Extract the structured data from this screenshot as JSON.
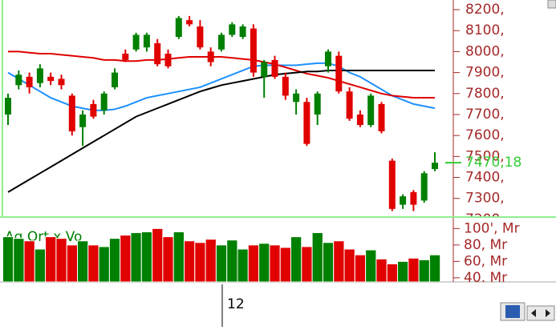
{
  "chart_data": [
    {
      "type": "candlestick",
      "up_color": "#008000",
      "down_color": "#e00000",
      "open": [
        7700,
        7840,
        7880,
        7850,
        7880,
        7870,
        7790,
        7640,
        7750,
        7720,
        7830,
        7990,
        8010,
        8020,
        8040,
        7990,
        8070,
        8150,
        8120,
        8000,
        8010,
        8080,
        8070,
        8110,
        7880,
        7960,
        7880,
        7760,
        7760,
        7700,
        7930,
        7980,
        7810,
        7700,
        7650,
        7750,
        7480,
        7270,
        7330,
        7290,
        7440
      ],
      "high": [
        7800,
        7910,
        7900,
        7940,
        7900,
        7890,
        7800,
        7720,
        7770,
        7810,
        7920,
        8010,
        8090,
        8090,
        8060,
        8010,
        8170,
        8170,
        8150,
        8020,
        8090,
        8140,
        8130,
        8130,
        7960,
        7980,
        7900,
        7820,
        7780,
        7810,
        8010,
        8000,
        7830,
        7720,
        7800,
        7760,
        7490,
        7320,
        7340,
        7430,
        7520
      ],
      "low": [
        7650,
        7820,
        7800,
        7830,
        7840,
        7820,
        7600,
        7550,
        7680,
        7700,
        7820,
        7950,
        8000,
        8000,
        7930,
        7920,
        8060,
        8120,
        8010,
        7930,
        8000,
        8070,
        8060,
        7880,
        7780,
        7870,
        7770,
        7700,
        7550,
        7650,
        7900,
        7800,
        7670,
        7640,
        7640,
        7610,
        7240,
        7250,
        7240,
        7280,
        7430
      ],
      "close": [
        7780,
        7890,
        7830,
        7920,
        7860,
        7840,
        7620,
        7700,
        7690,
        7800,
        7900,
        7960,
        8080,
        8080,
        7940,
        7930,
        8160,
        8130,
        8020,
        7950,
        8080,
        8130,
        8120,
        7900,
        7950,
        7880,
        7790,
        7800,
        7560,
        7800,
        8000,
        7810,
        7680,
        7650,
        7790,
        7620,
        7250,
        7310,
        7270,
        7420,
        7470.18
      ],
      "series": [
        {
          "color": "#1e90ff",
          "values": [
            7900,
            7870,
            7840,
            7810,
            7780,
            7760,
            7740,
            7730,
            7720,
            7720,
            7725,
            7740,
            7760,
            7780,
            7790,
            7800,
            7810,
            7820,
            7830,
            7850,
            7870,
            7890,
            7910,
            7930,
            7935,
            7935,
            7935,
            7935,
            7940,
            7945,
            7945,
            7930,
            7900,
            7880,
            7850,
            7820,
            7790,
            7770,
            7750,
            7740,
            7730
          ]
        },
        {
          "color": "#e00000",
          "values": [
            8000,
            8000,
            7995,
            7990,
            7990,
            7985,
            7980,
            7975,
            7970,
            7960,
            7960,
            7955,
            7955,
            7960,
            7960,
            7965,
            7970,
            7975,
            7975,
            7975,
            7975,
            7970,
            7965,
            7960,
            7950,
            7940,
            7925,
            7910,
            7895,
            7885,
            7875,
            7860,
            7845,
            7830,
            7815,
            7800,
            7790,
            7785,
            7780,
            7780,
            7780
          ]
        },
        {
          "color": "#000000",
          "values": [
            7330,
            7360,
            7390,
            7420,
            7450,
            7480,
            7510,
            7540,
            7570,
            7600,
            7630,
            7660,
            7690,
            7710,
            7730,
            7750,
            7770,
            7790,
            7810,
            7825,
            7840,
            7850,
            7860,
            7870,
            7880,
            7890,
            7895,
            7900,
            7905,
            7905,
            7910,
            7910,
            7910,
            7910,
            7910,
            7910,
            7910,
            7910,
            7910,
            7910,
            7910
          ]
        }
      ],
      "ylim": [
        7215,
        8246
      ],
      "yticks": [
        {
          "value": 8200,
          "label": "8200,"
        },
        {
          "value": 8100,
          "label": "8100,"
        },
        {
          "value": 8000,
          "label": "8000,"
        },
        {
          "value": 7900,
          "label": "7900,"
        },
        {
          "value": 7800,
          "label": "7800,"
        },
        {
          "value": 7700,
          "label": "7700,"
        },
        {
          "value": 7600,
          "label": "7600,"
        },
        {
          "value": 7500,
          "label": "7500,"
        },
        {
          "value": 7400,
          "label": "7400,"
        },
        {
          "value": 7300,
          "label": "7300,"
        },
        {
          "value": 7200,
          "label": "7200,"
        }
      ],
      "last_price": {
        "value": 7470.18,
        "label": "7470,18"
      },
      "xticks": [
        {
          "value": 20,
          "label": "12"
        }
      ]
    },
    {
      "type": "bar",
      "title": "Ag Ort x Vo",
      "values": [
        90,
        88,
        85,
        75,
        90,
        88,
        80,
        85,
        80,
        78,
        88,
        92,
        95,
        96,
        100,
        90,
        96,
        85,
        83,
        87,
        80,
        86,
        75,
        80,
        82,
        80,
        77,
        90,
        78,
        95,
        83,
        85,
        75,
        68,
        74,
        63,
        57,
        60,
        64,
        62,
        68
      ],
      "ylim": [
        35,
        113
      ],
      "yticks": [
        {
          "value": 100,
          "label": "100', Mr"
        },
        {
          "value": 80,
          "label": "80, Mr"
        },
        {
          "value": 60,
          "label": "60, Mr"
        },
        {
          "value": 40,
          "label": "40, Mr"
        }
      ]
    }
  ]
}
